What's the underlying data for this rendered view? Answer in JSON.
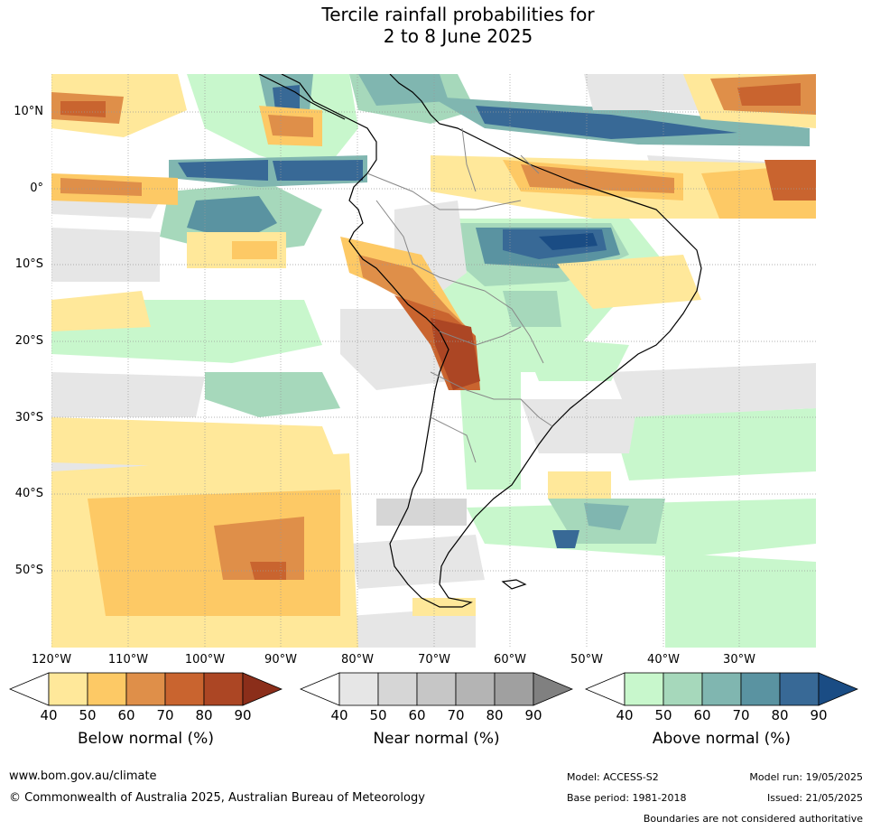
{
  "title_line1": "Tercile rainfall probabilities for",
  "title_line2": "2 to 8 June 2025",
  "lat_labels": [
    "10°N",
    "0°",
    "10°S",
    "20°S",
    "30°S",
    "40°S",
    "50°S"
  ],
  "lon_labels": [
    "120°W",
    "110°W",
    "100°W",
    "90°W",
    "80°W",
    "70°W",
    "60°W",
    "50°W",
    "40°W",
    "30°W"
  ],
  "legends": [
    {
      "title": "Below normal (%)",
      "ticks": [
        "40",
        "50",
        "60",
        "70",
        "80",
        "90"
      ],
      "colors": [
        "#ffffff",
        "#ffe89a",
        "#fdc965",
        "#df8f49",
        "#c9642f",
        "#ac4624",
        "#8b2e1a"
      ]
    },
    {
      "title": "Near normal (%)",
      "ticks": [
        "40",
        "50",
        "60",
        "70",
        "80",
        "90"
      ],
      "colors": [
        "#ffffff",
        "#e6e6e6",
        "#d6d6d6",
        "#c6c6c6",
        "#b4b4b4",
        "#a0a0a0",
        "#808080"
      ]
    },
    {
      "title": "Above normal (%)",
      "ticks": [
        "40",
        "50",
        "60",
        "70",
        "80",
        "90"
      ],
      "colors": [
        "#ffffff",
        "#c8f7cc",
        "#a6d8bb",
        "#80b6b0",
        "#5a93a1",
        "#386996",
        "#1a4c84"
      ]
    }
  ],
  "footer": {
    "website": "www.bom.gov.au/climate",
    "copyright": "© Commonwealth of Australia 2025, Australian Bureau of Meteorology",
    "model": "Model: ACCESS-S2",
    "base_period": "Base period: 1981-2018",
    "model_run": "Model run: 19/05/2025",
    "issued": "Issued: 21/05/2025",
    "disclaimer": "Boundaries are not considered authoritative"
  }
}
